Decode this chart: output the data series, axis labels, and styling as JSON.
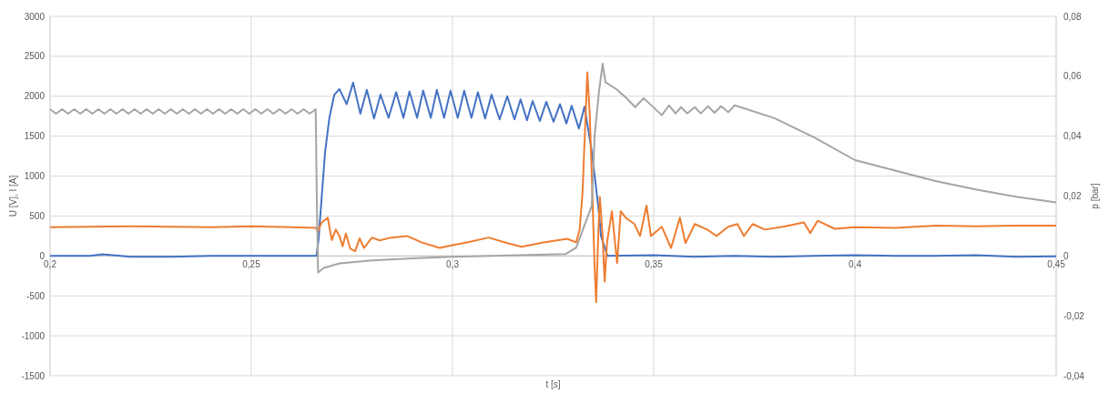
{
  "chart_data": {
    "type": "line",
    "xlabel": "t [s]",
    "ylabel": "U [V], I [A]",
    "y2label": "p [bar]",
    "xlim": [
      0.2,
      0.45
    ],
    "xticks": [
      {
        "value": 0.2,
        "label": "0,2"
      },
      {
        "value": 0.25,
        "label": "0,25"
      },
      {
        "value": 0.3,
        "label": "0,3"
      },
      {
        "value": 0.35,
        "label": "0,35"
      },
      {
        "value": 0.4,
        "label": "0,4"
      },
      {
        "value": 0.45,
        "label": "0,45"
      }
    ],
    "ylim": [
      -1500,
      3000
    ],
    "yticks": [
      -1500,
      -1000,
      -500,
      0,
      500,
      1000,
      1500,
      2000,
      2500,
      3000
    ],
    "y2lim": [
      -0.04,
      0.08
    ],
    "y2ticks": [
      {
        "value": -0.04,
        "label": "-0,04"
      },
      {
        "value": -0.02,
        "label": "-0,02"
      },
      0,
      {
        "value": 0.02,
        "label": "0,02"
      },
      {
        "value": 0.04,
        "label": "0,04"
      },
      {
        "value": 0.06,
        "label": "0,06"
      },
      {
        "value": 0.08,
        "label": "0,08"
      }
    ],
    "grid": true,
    "series": [
      {
        "color": "#4472c4",
        "x": [
          0.2,
          0.205,
          0.21,
          0.213,
          0.22,
          0.23,
          0.24,
          0.25,
          0.26,
          0.2655,
          0.2662,
          0.2667,
          0.2683,
          0.2694,
          0.2706,
          0.2719,
          0.2737,
          0.2753,
          0.2771,
          0.2787,
          0.2805,
          0.2821,
          0.2841,
          0.286,
          0.2878,
          0.2893,
          0.2912,
          0.2927,
          0.2946,
          0.2961,
          0.2979,
          0.2995,
          0.3013,
          0.3029,
          0.3047,
          0.3063,
          0.3081,
          0.3097,
          0.3117,
          0.3136,
          0.3154,
          0.3169,
          0.3185,
          0.3199,
          0.3217,
          0.3233,
          0.3251,
          0.3267,
          0.3283,
          0.3296,
          0.3314,
          0.3328,
          0.3346,
          0.3362,
          0.3369,
          0.3385,
          0.35,
          0.36,
          0.37,
          0.38,
          0.39,
          0.4,
          0.41,
          0.42,
          0.43,
          0.44,
          0.45
        ],
        "values": [
          0,
          0,
          0,
          20,
          -10,
          -10,
          0,
          0,
          0,
          0,
          0,
          200,
          1280,
          1730,
          2015,
          2090,
          1900,
          2170,
          1780,
          2080,
          1720,
          2020,
          1730,
          2050,
          1730,
          2060,
          1730,
          2070,
          1730,
          2080,
          1730,
          2070,
          1730,
          2070,
          1730,
          2050,
          1720,
          2020,
          1710,
          2000,
          1710,
          1960,
          1700,
          1940,
          1690,
          1930,
          1680,
          1900,
          1660,
          1880,
          1595,
          1870,
          1310,
          630,
          250,
          0,
          10,
          -10,
          0,
          -10,
          0,
          10,
          0,
          0,
          10,
          -10,
          -5
        ]
      },
      {
        "color": "#ed7d31",
        "x": [
          0.2,
          0.22,
          0.24,
          0.25,
          0.26,
          0.2662,
          0.2665,
          0.2675,
          0.269,
          0.27,
          0.271,
          0.2719,
          0.2727,
          0.2735,
          0.2746,
          0.2758,
          0.2769,
          0.278,
          0.28,
          0.2819,
          0.2848,
          0.2887,
          0.2923,
          0.2968,
          0.3,
          0.3036,
          0.309,
          0.3136,
          0.3172,
          0.3226,
          0.3285,
          0.3307,
          0.3316,
          0.3323,
          0.3335,
          0.3341,
          0.3346,
          0.3353,
          0.3357,
          0.3362,
          0.3366,
          0.3373,
          0.3378,
          0.3384,
          0.3396,
          0.3409,
          0.3418,
          0.343,
          0.3452,
          0.3466,
          0.3482,
          0.3493,
          0.352,
          0.3543,
          0.3565,
          0.3579,
          0.3602,
          0.3633,
          0.3656,
          0.3685,
          0.3708,
          0.3724,
          0.3746,
          0.3776,
          0.3821,
          0.3873,
          0.3889,
          0.3907,
          0.395,
          0.4,
          0.41,
          0.42,
          0.43,
          0.44,
          0.45
        ],
        "values": [
          360,
          370,
          360,
          370,
          360,
          350,
          300,
          420,
          480,
          200,
          330,
          250,
          120,
          280,
          90,
          60,
          220,
          100,
          230,
          195,
          230,
          250,
          170,
          100,
          135,
          170,
          230,
          160,
          115,
          170,
          215,
          170,
          330,
          790,
          2300,
          1770,
          1010,
          -125,
          -580,
          250,
          740,
          250,
          -320,
          170,
          560,
          -90,
          560,
          480,
          400,
          250,
          630,
          250,
          365,
          100,
          480,
          160,
          400,
          330,
          250,
          365,
          400,
          250,
          400,
          330,
          365,
          420,
          285,
          440,
          340,
          360,
          350,
          380,
          370,
          380,
          380
        ]
      },
      {
        "color": "#a5a5a5",
        "axis": "y2",
        "x": [
          0.2,
          0.2015,
          0.203,
          0.2045,
          0.206,
          0.2075,
          0.209,
          0.2105,
          0.212,
          0.2135,
          0.215,
          0.2165,
          0.218,
          0.2195,
          0.221,
          0.2225,
          0.224,
          0.2255,
          0.227,
          0.2285,
          0.23,
          0.2315,
          0.233,
          0.2345,
          0.236,
          0.2375,
          0.239,
          0.2405,
          0.242,
          0.2435,
          0.245,
          0.2465,
          0.248,
          0.2495,
          0.251,
          0.2525,
          0.254,
          0.2555,
          0.257,
          0.2585,
          0.26,
          0.2615,
          0.263,
          0.2645,
          0.266,
          0.2663,
          0.2666,
          0.268,
          0.272,
          0.28,
          0.29,
          0.3,
          0.31,
          0.328,
          0.3307,
          0.3346,
          0.3353,
          0.3364,
          0.3373,
          0.338,
          0.3407,
          0.343,
          0.3454,
          0.3475,
          0.352,
          0.3538,
          0.3554,
          0.3568,
          0.3583,
          0.3602,
          0.3617,
          0.3635,
          0.3651,
          0.3667,
          0.3685,
          0.3701,
          0.38,
          0.39,
          0.4,
          0.41,
          0.42,
          0.43,
          0.44,
          0.45
        ],
        "values": [
          0.049,
          0.0475,
          0.049,
          0.0475,
          0.049,
          0.0475,
          0.049,
          0.0475,
          0.049,
          0.0475,
          0.049,
          0.0475,
          0.049,
          0.0475,
          0.049,
          0.0475,
          0.049,
          0.0475,
          0.049,
          0.0475,
          0.049,
          0.0475,
          0.049,
          0.0475,
          0.049,
          0.0475,
          0.049,
          0.0475,
          0.049,
          0.0475,
          0.049,
          0.0475,
          0.049,
          0.0475,
          0.049,
          0.0475,
          0.049,
          0.0475,
          0.049,
          0.0475,
          0.049,
          0.0475,
          0.049,
          0.0475,
          0.049,
          0.017,
          -0.0055,
          -0.004,
          -0.0025,
          -0.0015,
          -0.0008,
          -0.0003,
          0,
          0.0006,
          0.0027,
          0.0167,
          0.04,
          0.055,
          0.0642,
          0.058,
          0.0557,
          0.053,
          0.0497,
          0.0527,
          0.047,
          0.0503,
          0.0476,
          0.0497,
          0.0476,
          0.0497,
          0.0476,
          0.05,
          0.0478,
          0.05,
          0.048,
          0.0503,
          0.046,
          0.0395,
          0.032,
          0.0285,
          0.025,
          0.0222,
          0.0198,
          0.0179
        ]
      }
    ]
  }
}
